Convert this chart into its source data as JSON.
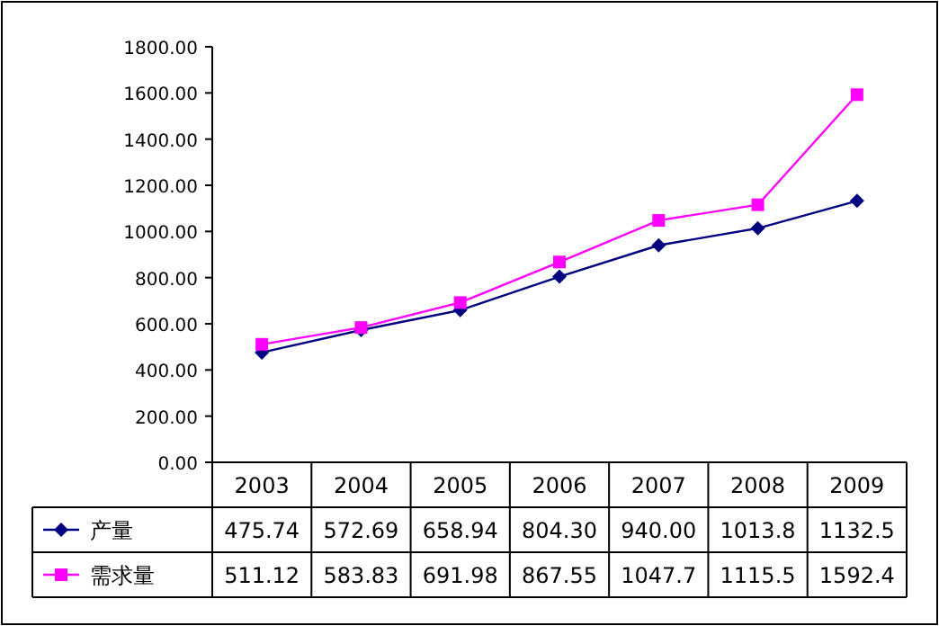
{
  "chart_data": {
    "type": "line",
    "categories": [
      "2003",
      "2004",
      "2005",
      "2006",
      "2007",
      "2008",
      "2009"
    ],
    "series": [
      {
        "name": "产量",
        "color": "#000080",
        "marker": "diamond",
        "values": [
          475.74,
          572.69,
          658.94,
          804.3,
          940.0,
          1013.8,
          1132.5
        ],
        "value_labels": [
          "475.74",
          "572.69",
          "658.94",
          "804.30",
          "940.00",
          "1013.8",
          "1132.5"
        ]
      },
      {
        "name": "需求量",
        "color": "#ff00ff",
        "marker": "square",
        "values": [
          511.12,
          583.83,
          691.98,
          867.55,
          1047.7,
          1115.5,
          1592.4
        ],
        "value_labels": [
          "511.12",
          "583.83",
          "691.98",
          "867.55",
          "1047.7",
          "1115.5",
          "1592.4"
        ]
      }
    ],
    "ylim": [
      0,
      1800
    ],
    "yticks": [
      {
        "value": 0,
        "label": "0.00"
      },
      {
        "value": 200,
        "label": "200.00"
      },
      {
        "value": 400,
        "label": "400.00"
      },
      {
        "value": 600,
        "label": "600.00"
      },
      {
        "value": 800,
        "label": "800.00"
      },
      {
        "value": 1000,
        "label": "1000.00"
      },
      {
        "value": 1200,
        "label": "1200.00"
      },
      {
        "value": 1400,
        "label": "1400.00"
      },
      {
        "value": 1600,
        "label": "1600.00"
      },
      {
        "value": 1800,
        "label": "1800.00"
      }
    ],
    "legend": "bottom"
  }
}
